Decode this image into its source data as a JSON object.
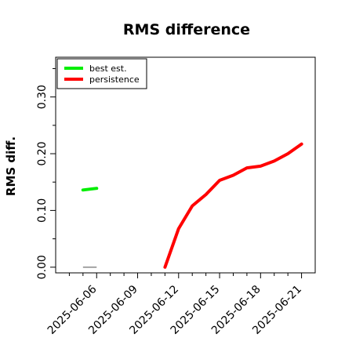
{
  "chart_data": {
    "type": "line",
    "title": "RMS difference",
    "xlabel": "",
    "ylabel": "RMS diff.",
    "xlim": [
      "2025-06-03",
      "2025-06-22"
    ],
    "ylim": [
      -0.01,
      0.37
    ],
    "x_ticks": [
      "2025-06-06",
      "2025-06-09",
      "2025-06-12",
      "2025-06-15",
      "2025-06-18",
      "2025-06-21"
    ],
    "x_minor_ticks": [
      "2025-06-04",
      "2025-06-05",
      "2025-06-07",
      "2025-06-08",
      "2025-06-10",
      "2025-06-11",
      "2025-06-13",
      "2025-06-14",
      "2025-06-16",
      "2025-06-17",
      "2025-06-19",
      "2025-06-20"
    ],
    "y_ticks": [
      0.0,
      0.1,
      0.2,
      0.3
    ],
    "y_tick_labels": [
      "0.00",
      "0.10",
      "0.20",
      "0.30"
    ],
    "y_minor_ticks": [
      0.05,
      0.15,
      0.25,
      0.35
    ],
    "grid": false,
    "legend": "top-left",
    "series": [
      {
        "name": "best est.",
        "color": "#00ee00",
        "x": [
          "2025-06-05",
          "2025-06-06"
        ],
        "y": [
          0.136,
          0.139
        ]
      },
      {
        "name": "persistence",
        "color": "#ff0000",
        "x": [
          "2025-06-11",
          "2025-06-12",
          "2025-06-13",
          "2025-06-14",
          "2025-06-15",
          "2025-06-16",
          "2025-06-17",
          "2025-06-18",
          "2025-06-19",
          "2025-06-20",
          "2025-06-21"
        ],
        "y": [
          0.0,
          0.068,
          0.108,
          0.128,
          0.153,
          0.162,
          0.175,
          0.178,
          0.187,
          0.2,
          0.217
        ]
      }
    ],
    "reference_segment": {
      "color": "#888888",
      "x": [
        "2025-06-05",
        "2025-06-06"
      ],
      "y": [
        0.0,
        0.0
      ]
    }
  }
}
